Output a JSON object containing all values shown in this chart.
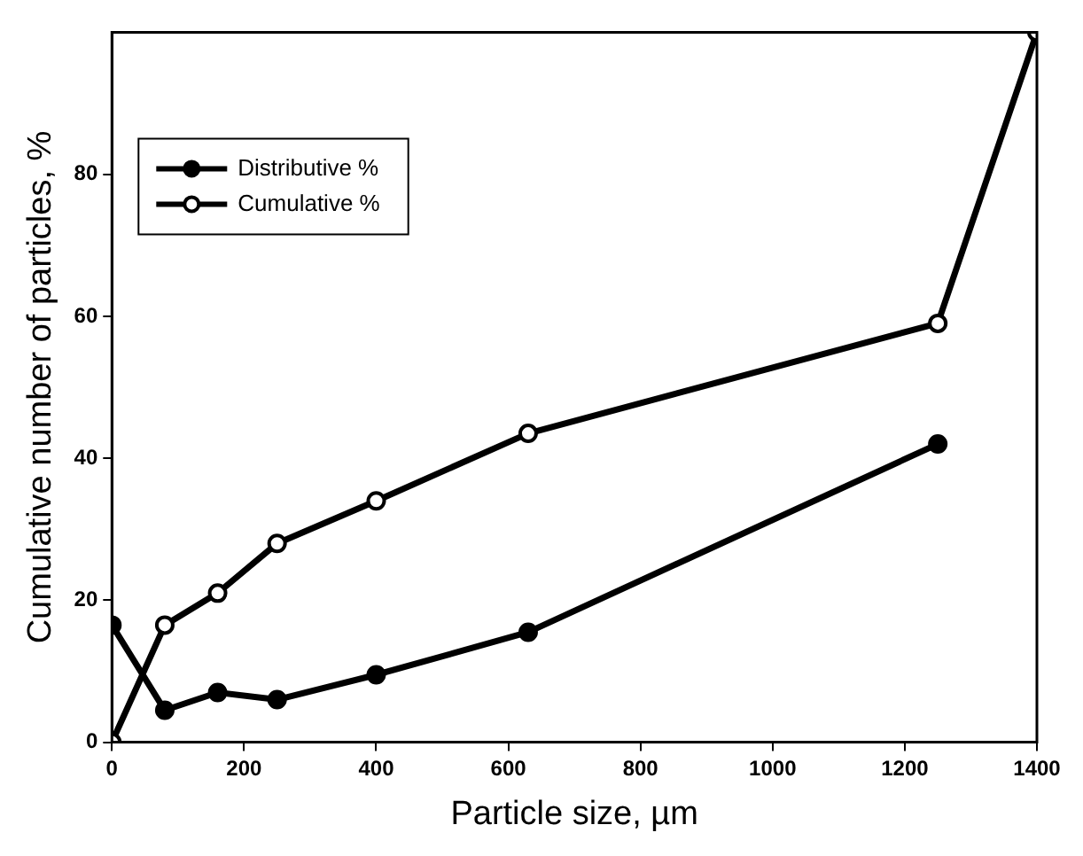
{
  "chart_data": {
    "type": "line",
    "xlabel": "Particle size, µm",
    "ylabel": "Cumulative number of particles, %",
    "xlim": [
      0,
      1400
    ],
    "xticks": [
      0,
      200,
      400,
      600,
      800,
      1000,
      1200,
      1400
    ],
    "ylim": [
      0,
      100
    ],
    "yticks": [
      0,
      20,
      40,
      60,
      80
    ],
    "grid": false,
    "legend": "top left",
    "marker": "circle",
    "line_style": "solid",
    "series": [
      {
        "name": "Distributive %",
        "color": "#000000",
        "x": [
          0,
          80,
          160,
          250,
          400,
          630,
          1250
        ],
        "values": [
          16.5,
          4.5,
          7,
          6,
          9.5,
          15.5,
          42
        ]
      },
      {
        "name": "Cumulative %",
        "color": "#000000",
        "x": [
          0,
          80,
          160,
          250,
          400,
          630,
          1250,
          1400
        ],
        "values": [
          0,
          16.5,
          21,
          28,
          34,
          43.5,
          59,
          100
        ]
      }
    ]
  }
}
